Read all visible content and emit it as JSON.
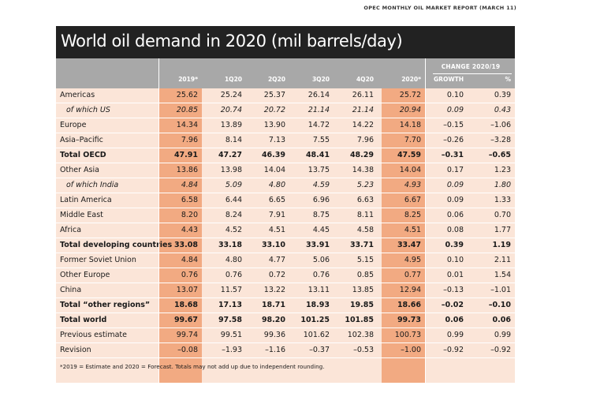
{
  "source": "OPEC MONTHLY OIL MARKET REPORT (MARCH 11)",
  "title": "World oil demand in 2020 (mil barrels/day)",
  "change_header": "CHANGE 2020/19",
  "columns": [
    "2019*",
    "1Q20",
    "2Q20",
    "3Q20",
    "4Q20",
    "2020*",
    "GROWTH",
    "%"
  ],
  "rows": [
    {
      "label": "Americas",
      "style": "normal",
      "values": [
        "25.62",
        "25.24",
        "25.37",
        "26.14",
        "26.11",
        "25.72",
        "0.10",
        "0.39"
      ]
    },
    {
      "label": "of which US",
      "style": "italic",
      "values": [
        "20.85",
        "20.74",
        "20.72",
        "21.14",
        "21.14",
        "20.94",
        "0.09",
        "0.43"
      ]
    },
    {
      "label": "Europe",
      "style": "normal",
      "values": [
        "14.34",
        "13.89",
        "13.90",
        "14.72",
        "14.22",
        "14.18",
        "–0.15",
        "–1.06"
      ]
    },
    {
      "label": "Asia–Pacific",
      "style": "normal",
      "values": [
        "7.96",
        "8.14",
        "7.13",
        "7.55",
        "7.96",
        "7.70",
        "–0.26",
        "–3.28"
      ]
    },
    {
      "label": "Total OECD",
      "style": "bold",
      "values": [
        "47.91",
        "47.27",
        "46.39",
        "48.41",
        "48.29",
        "47.59",
        "–0.31",
        "–0.65"
      ]
    },
    {
      "label": "Other Asia",
      "style": "normal",
      "values": [
        "13.86",
        "13.98",
        "14.04",
        "13.75",
        "14.38",
        "14.04",
        "0.17",
        "1.23"
      ]
    },
    {
      "label": "of which India",
      "style": "italic",
      "values": [
        "4.84",
        "5.09",
        "4.80",
        "4.59",
        "5.23",
        "4.93",
        "0.09",
        "1.80"
      ]
    },
    {
      "label": "Latin America",
      "style": "normal",
      "values": [
        "6.58",
        "6.44",
        "6.65",
        "6.96",
        "6.63",
        "6.67",
        "0.09",
        "1.33"
      ]
    },
    {
      "label": "Middle East",
      "style": "normal",
      "values": [
        "8.20",
        "8.24",
        "7.91",
        "8.75",
        "8.11",
        "8.25",
        "0.06",
        "0.70"
      ]
    },
    {
      "label": "Africa",
      "style": "normal",
      "values": [
        "4.43",
        "4.52",
        "4.51",
        "4.45",
        "4.58",
        "4.51",
        "0.08",
        "1.77"
      ]
    },
    {
      "label": "Total developing countries",
      "style": "bold",
      "values": [
        "33.08",
        "33.18",
        "33.10",
        "33.91",
        "33.71",
        "33.47",
        "0.39",
        "1.19"
      ]
    },
    {
      "label": "Former Soviet Union",
      "style": "normal",
      "values": [
        "4.84",
        "4.80",
        "4.77",
        "5.06",
        "5.15",
        "4.95",
        "0.10",
        "2.11"
      ]
    },
    {
      "label": "Other Europe",
      "style": "normal",
      "values": [
        "0.76",
        "0.76",
        "0.72",
        "0.76",
        "0.85",
        "0.77",
        "0.01",
        "1.54"
      ]
    },
    {
      "label": "China",
      "style": "normal",
      "values": [
        "13.07",
        "11.57",
        "13.22",
        "13.11",
        "13.85",
        "12.94",
        "–0.13",
        "–1.01"
      ]
    },
    {
      "label": "Total “other regions”",
      "style": "bold",
      "values": [
        "18.68",
        "17.13",
        "18.71",
        "18.93",
        "19.85",
        "18.66",
        "–0.02",
        "–0.10"
      ]
    },
    {
      "label": "Total world",
      "style": "bold",
      "values": [
        "99.67",
        "97.58",
        "98.20",
        "101.25",
        "101.85",
        "99.73",
        "0.06",
        "0.06"
      ]
    },
    {
      "label": "Previous estimate",
      "style": "normal",
      "values": [
        "99.74",
        "99.51",
        "99.36",
        "101.62",
        "102.38",
        "100.73",
        "0.99",
        "0.99"
      ]
    },
    {
      "label": "Revision",
      "style": "normal",
      "values": [
        "–0.08",
        "–1.93",
        "–1.16",
        "–0.37",
        "–0.53",
        "–1.00",
        "–0.92",
        "–0.92"
      ]
    }
  ],
  "footnote": "*2019 = Estimate and 2020 = Forecast. Totals may not add up due to independent rounding.",
  "colors": {
    "panel": "#fbe5d8",
    "highlight": "#f2aa82",
    "header": "#a8a8a8",
    "titlebar": "#222222"
  }
}
